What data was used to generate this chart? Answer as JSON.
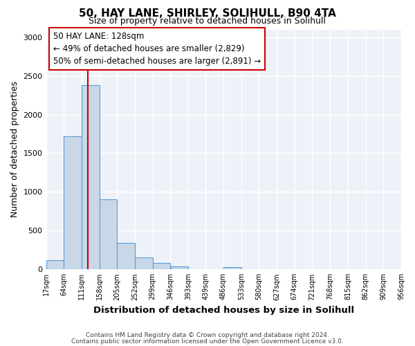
{
  "title1": "50, HAY LANE, SHIRLEY, SOLIHULL, B90 4TA",
  "title2": "Size of property relative to detached houses in Solihull",
  "xlabel": "Distribution of detached houses by size in Solihull",
  "ylabel": "Number of detached properties",
  "bin_edges": [
    17,
    64,
    111,
    158,
    205,
    252,
    299,
    346,
    393,
    439,
    486,
    533,
    580,
    627,
    674,
    721,
    768,
    815,
    862,
    909,
    956
  ],
  "bar_heights": [
    120,
    1720,
    2380,
    910,
    340,
    155,
    80,
    40,
    0,
    0,
    30,
    0,
    0,
    0,
    0,
    0,
    0,
    0,
    0,
    0
  ],
  "bar_color": "#c8d8e8",
  "bar_edge_color": "#5b9bd5",
  "grid_color": "#d0d8e8",
  "property_line_x": 128,
  "property_line_color": "#cc0000",
  "annotation_title": "50 HAY LANE: 128sqm",
  "annotation_line1": "← 49% of detached houses are smaller (2,829)",
  "annotation_line2": "50% of semi-detached houses are larger (2,891) →",
  "annotation_box_color": "#ffffff",
  "annotation_box_edge": "#cc0000",
  "ylim": [
    0,
    3100
  ],
  "yticks": [
    0,
    500,
    1000,
    1500,
    2000,
    2500,
    3000
  ],
  "footer1": "Contains HM Land Registry data © Crown copyright and database right 2024.",
  "footer2": "Contains public sector information licensed under the Open Government Licence v3.0."
}
